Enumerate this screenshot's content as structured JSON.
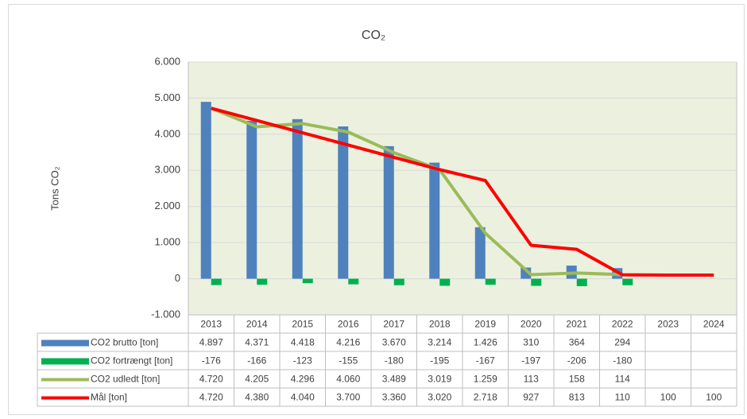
{
  "chart_data": {
    "type": "bar_line_table",
    "title": "CO₂",
    "y_label": "Tons CO₂",
    "categories": [
      "2013",
      "2014",
      "2015",
      "2016",
      "2017",
      "2018",
      "2019",
      "2020",
      "2021",
      "2022",
      "2023",
      "2024"
    ],
    "series": [
      {
        "name": "CO2 brutto [ton]",
        "kind": "bar",
        "color": "#4f81bd",
        "values": [
          4897,
          4371,
          4418,
          4216,
          3670,
          3214,
          1426,
          310,
          364,
          294,
          null,
          null
        ],
        "value_labels": [
          "4.897",
          "4.371",
          "4.418",
          "4.216",
          "3.670",
          "3.214",
          "1.426",
          "310",
          "364",
          "294",
          null,
          null
        ]
      },
      {
        "name": "CO2 fortrængt [ton]",
        "kind": "bar",
        "color": "#00b050",
        "values": [
          -176,
          -166,
          -123,
          -155,
          -180,
          -195,
          -167,
          -197,
          -206,
          -180,
          null,
          null
        ],
        "value_labels": [
          "-176",
          "-166",
          "-123",
          "-155",
          "-180",
          "-195",
          "-167",
          "-197",
          "-206",
          "-180",
          null,
          null
        ]
      },
      {
        "name": "CO2 udledt [ton]",
        "kind": "line",
        "color": "#9bbb59",
        "values": [
          4720,
          4205,
          4296,
          4060,
          3489,
          3019,
          1259,
          113,
          158,
          114,
          null,
          null
        ],
        "value_labels": [
          "4.720",
          "4.205",
          "4.296",
          "4.060",
          "3.489",
          "3.019",
          "1.259",
          "113",
          "158",
          "114",
          null,
          null
        ]
      },
      {
        "name": "Mål [ton]",
        "kind": "line",
        "color": "#ff0000",
        "values": [
          4720,
          4380,
          4040,
          3700,
          3360,
          3020,
          2718,
          927,
          813,
          110,
          100,
          100
        ],
        "value_labels": [
          "4.720",
          "4.380",
          "4.040",
          "3.700",
          "3.360",
          "3.020",
          "2.718",
          "927",
          "813",
          "110",
          "100",
          "100"
        ]
      }
    ],
    "ylim": [
      -1000,
      6000
    ],
    "yticks": [
      {
        "value": -1000,
        "label": "-1.000"
      },
      0,
      {
        "value": 1000,
        "label": "1.000"
      },
      {
        "value": 2000,
        "label": "2.000"
      },
      {
        "value": 3000,
        "label": "3.000"
      },
      {
        "value": 4000,
        "label": "4.000"
      },
      {
        "value": 5000,
        "label": "5.000"
      },
      {
        "value": 6000,
        "label": "6.000"
      }
    ],
    "grid": true,
    "plot_background": "#ebf1de"
  }
}
